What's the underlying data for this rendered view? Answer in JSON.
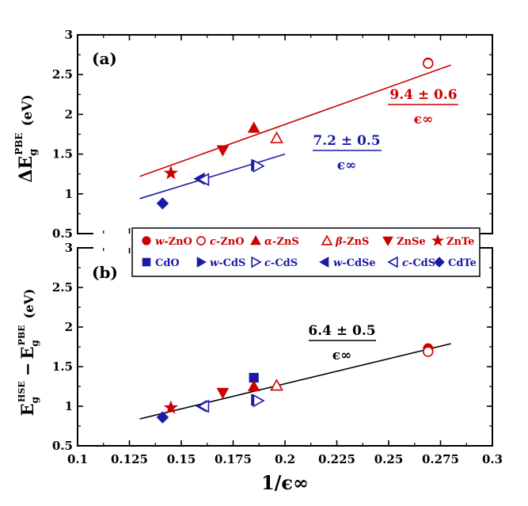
{
  "chart_data": [
    {
      "panel": "a",
      "panel_label": "(a)",
      "type": "scatter",
      "ylabel_parts": {
        "main": "ΔE",
        "sub": "g",
        "sup": "PBE",
        "unit": "(eV)"
      },
      "ylim": [
        0.5,
        3
      ],
      "yticks": [
        0.5,
        1,
        1.5,
        2,
        2.5,
        3
      ],
      "ytick_labels": [
        "0.5",
        "1",
        "1.5",
        "2",
        "2.5",
        "3"
      ],
      "xlim": [
        0.1,
        0.3
      ],
      "points": [
        {
          "id": "w-ZnO",
          "x": 0.269,
          "y": 2.65,
          "marker": "circle",
          "fill": true,
          "color": "#cc0000"
        },
        {
          "id": "c-ZnO",
          "x": 0.269,
          "y": 2.64,
          "marker": "circle",
          "fill": false,
          "color": "#cc0000"
        },
        {
          "id": "a-ZnS",
          "x": 0.185,
          "y": 1.83,
          "marker": "triangle-up",
          "fill": true,
          "color": "#cc0000"
        },
        {
          "id": "b-ZnS",
          "x": 0.196,
          "y": 1.7,
          "marker": "triangle-up",
          "fill": false,
          "color": "#cc0000"
        },
        {
          "id": "ZnSe",
          "x": 0.17,
          "y": 1.55,
          "marker": "triangle-down",
          "fill": true,
          "color": "#cc0000"
        },
        {
          "id": "ZnTe",
          "x": 0.145,
          "y": 1.26,
          "marker": "star",
          "fill": true,
          "color": "#cc0000"
        },
        {
          "id": "w-CdS",
          "x": 0.186,
          "y": 1.36,
          "marker": "triangle-right",
          "fill": true,
          "color": "#1a1aa6"
        },
        {
          "id": "c-CdS",
          "x": 0.187,
          "y": 1.35,
          "marker": "triangle-right",
          "fill": false,
          "color": "#1a1aa6"
        },
        {
          "id": "w-CdSe",
          "x": 0.159,
          "y": 1.19,
          "marker": "triangle-left",
          "fill": true,
          "color": "#1a1aa6"
        },
        {
          "id": "c-CdSe",
          "x": 0.161,
          "y": 1.18,
          "marker": "triangle-left",
          "fill": false,
          "color": "#1a1aa6"
        },
        {
          "id": "CdTe",
          "x": 0.141,
          "y": 0.88,
          "marker": "diamond",
          "fill": true,
          "color": "#1a1aa6"
        }
      ],
      "fit_lines": [
        {
          "x": [
            0.13,
            0.28
          ],
          "y": [
            1.22,
            2.62
          ],
          "color": "#cc0000",
          "slope_label": "9.4 ± 0.6",
          "denominator": "ϵ∞"
        },
        {
          "x": [
            0.13,
            0.2
          ],
          "y": [
            0.94,
            1.5
          ],
          "color": "#1a1aa6",
          "slope_label": "7.2 ± 0.5",
          "denominator": "ϵ∞"
        }
      ]
    },
    {
      "panel": "b",
      "panel_label": "(b)",
      "type": "scatter",
      "ylabel_parts": {
        "main": "E",
        "sub": "g",
        "sup": "HSE",
        "minus": "−",
        "main2": "E",
        "sub2": "g",
        "sup2": "PBE",
        "unit": "(eV)"
      },
      "xlabel": "1/ϵ∞",
      "ylim": [
        0.5,
        3
      ],
      "yticks": [
        0.5,
        1,
        1.5,
        2,
        2.5,
        3
      ],
      "ytick_labels": [
        "0.5",
        "1",
        "1.5",
        "2",
        "2.5",
        "3"
      ],
      "xlim": [
        0.1,
        0.3
      ],
      "xticks": [
        0.1,
        0.125,
        0.15,
        0.175,
        0.2,
        0.225,
        0.25,
        0.275,
        0.3
      ],
      "xtick_labels": [
        "0.1",
        "0.125",
        "0.15",
        "0.175",
        "0.2",
        "0.225",
        "0.25",
        "0.275",
        "0.3"
      ],
      "points": [
        {
          "id": "w-ZnO",
          "x": 0.269,
          "y": 1.73,
          "marker": "circle",
          "fill": true,
          "color": "#cc0000"
        },
        {
          "id": "c-ZnO",
          "x": 0.269,
          "y": 1.69,
          "marker": "circle",
          "fill": false,
          "color": "#cc0000"
        },
        {
          "id": "CdO",
          "x": 0.185,
          "y": 1.36,
          "marker": "square",
          "fill": true,
          "color": "#1a1aa6"
        },
        {
          "id": "a-ZnS",
          "x": 0.185,
          "y": 1.25,
          "marker": "triangle-up",
          "fill": true,
          "color": "#cc0000"
        },
        {
          "id": "b-ZnS",
          "x": 0.196,
          "y": 1.26,
          "marker": "triangle-up",
          "fill": false,
          "color": "#cc0000"
        },
        {
          "id": "ZnSe",
          "x": 0.17,
          "y": 1.17,
          "marker": "triangle-down",
          "fill": true,
          "color": "#cc0000"
        },
        {
          "id": "ZnTe",
          "x": 0.145,
          "y": 0.98,
          "marker": "star",
          "fill": true,
          "color": "#cc0000"
        },
        {
          "id": "w-CdS",
          "x": 0.186,
          "y": 1.08,
          "marker": "triangle-right",
          "fill": true,
          "color": "#1a1aa6"
        },
        {
          "id": "c-CdS",
          "x": 0.187,
          "y": 1.07,
          "marker": "triangle-right",
          "fill": false,
          "color": "#1a1aa6"
        },
        {
          "id": "w-CdSe",
          "x": 0.16,
          "y": 1.0,
          "marker": "triangle-left",
          "fill": true,
          "color": "#1a1aa6"
        },
        {
          "id": "c-CdSe",
          "x": 0.161,
          "y": 1.0,
          "marker": "triangle-left",
          "fill": false,
          "color": "#1a1aa6"
        },
        {
          "id": "CdTe",
          "x": 0.141,
          "y": 0.86,
          "marker": "diamond",
          "fill": true,
          "color": "#1a1aa6"
        }
      ],
      "fit_lines": [
        {
          "x": [
            0.13,
            0.28
          ],
          "y": [
            0.84,
            1.79
          ],
          "color": "#000000",
          "slope_label": "6.4 ± 0.5",
          "denominator": "ϵ∞"
        }
      ]
    }
  ],
  "legend": {
    "rows": [
      [
        {
          "prefix": "w",
          "text": "-ZnO",
          "marker": "circle",
          "fill": true,
          "color": "#cc0000"
        },
        {
          "prefix": "c",
          "text": "-ZnO",
          "marker": "circle",
          "fill": false,
          "color": "#cc0000"
        },
        {
          "prefix": "α",
          "text": "-ZnS",
          "marker": "triangle-up",
          "fill": true,
          "color": "#cc0000"
        },
        {
          "prefix": "β",
          "text": "-ZnS",
          "marker": "triangle-up",
          "fill": false,
          "color": "#cc0000"
        },
        {
          "prefix": "",
          "text": "ZnSe",
          "marker": "triangle-down",
          "fill": true,
          "color": "#cc0000"
        },
        {
          "prefix": "",
          "text": "ZnTe",
          "marker": "star",
          "fill": true,
          "color": "#cc0000"
        }
      ],
      [
        {
          "prefix": "",
          "text": "CdO",
          "marker": "square",
          "fill": true,
          "color": "#1a1aa6"
        },
        {
          "prefix": "w",
          "text": "-CdS",
          "marker": "triangle-right",
          "fill": true,
          "color": "#1a1aa6"
        },
        {
          "prefix": "c",
          "text": "-CdS",
          "marker": "triangle-right",
          "fill": false,
          "color": "#1a1aa6"
        },
        {
          "prefix": "w",
          "text": "-CdSe",
          "marker": "triangle-left",
          "fill": true,
          "color": "#1a1aa6"
        },
        {
          "prefix": "c",
          "text": "-CdSe",
          "marker": "triangle-left",
          "fill": false,
          "color": "#1a1aa6"
        },
        {
          "prefix": "",
          "text": "CdTe",
          "marker": "diamond",
          "fill": true,
          "color": "#1a1aa6"
        }
      ]
    ]
  }
}
